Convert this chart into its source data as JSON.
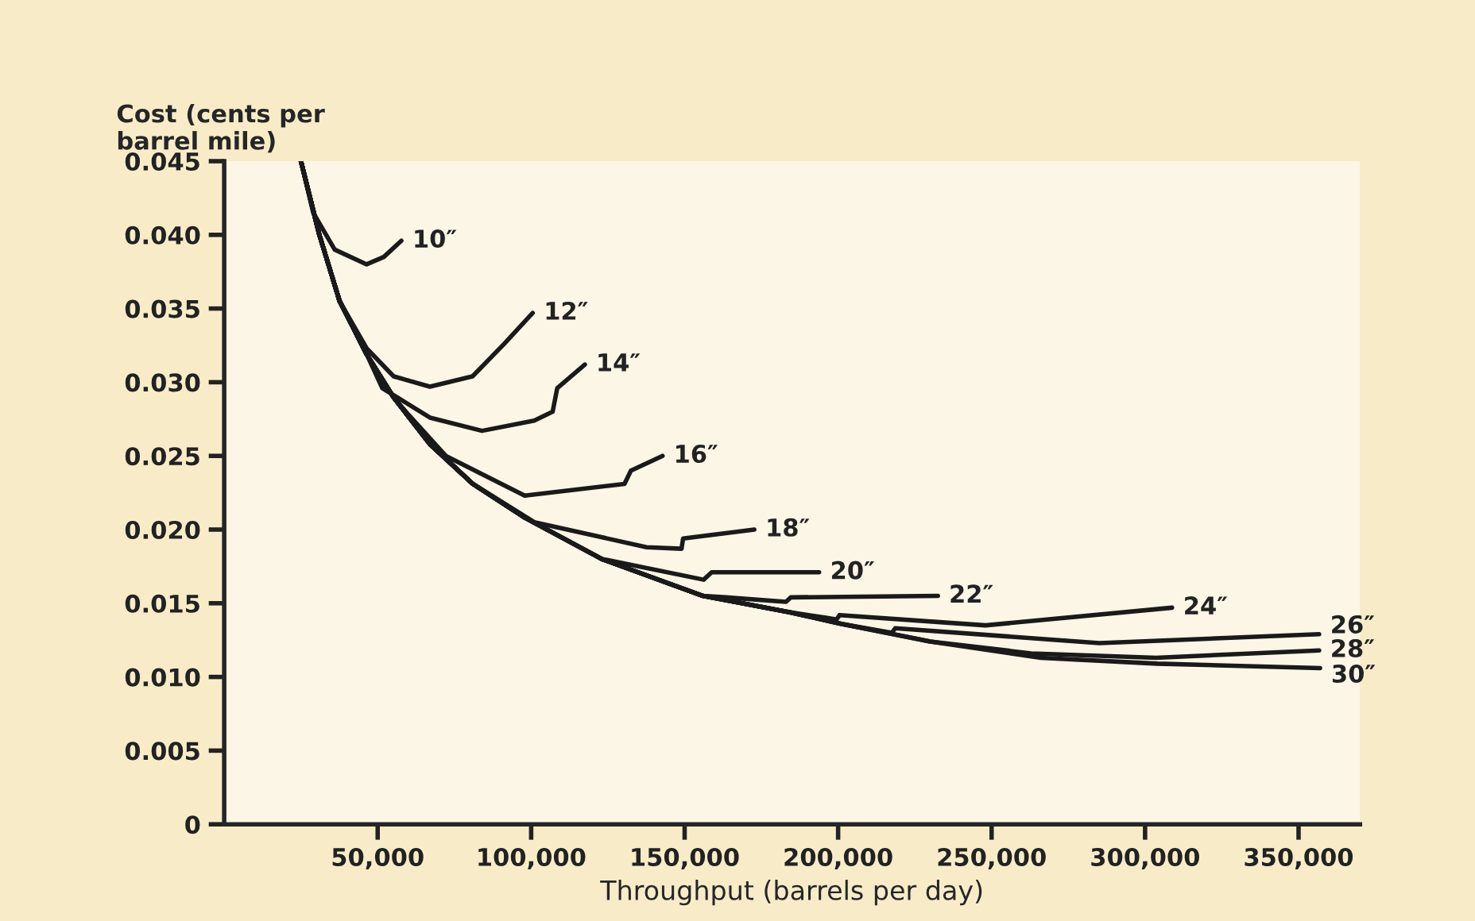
{
  "chart_data": {
    "type": "line",
    "xlabel": "Throughput (barrels per day)",
    "ylabel": "Cost (cents per\nbarrel mile)",
    "xlim": [
      0,
      370000
    ],
    "ylim": [
      0,
      0.045
    ],
    "xticks": [
      {
        "value": 50000,
        "label": "50,000"
      },
      {
        "value": 100000,
        "label": "100,000"
      },
      {
        "value": 150000,
        "label": "150,000"
      },
      {
        "value": 200000,
        "label": "200,000"
      },
      {
        "value": 250000,
        "label": "250,000"
      },
      {
        "value": 300000,
        "label": "300,000"
      },
      {
        "value": 350000,
        "label": "350,000"
      }
    ],
    "yticks": [
      0,
      0.005,
      {
        "value": 0.01,
        "label": "0.010"
      },
      0.015,
      {
        "value": 0.02,
        "label": "0.020"
      },
      0.025,
      {
        "value": 0.03,
        "label": "0.030"
      },
      0.035,
      {
        "value": 0.04,
        "label": "0.040"
      },
      0.045
    ],
    "grid": false,
    "legend": false,
    "marker": "none",
    "line_style": "solid",
    "series": [
      {
        "name": "10″",
        "color": "#1a1a1a",
        "x": [
          25000,
          29000,
          36000,
          46400,
          52000,
          57700
        ],
        "values": [
          0.045,
          0.0415,
          0.039,
          0.038,
          0.0385,
          0.0396
        ]
      },
      {
        "name": "12″",
        "color": "#1a1a1a",
        "x": [
          25000,
          31000,
          37600,
          46400,
          55200,
          67000,
          80900,
          91200,
          100500
        ],
        "values": [
          0.045,
          0.04,
          0.0355,
          0.0323,
          0.0304,
          0.0297,
          0.0304,
          0.0326,
          0.0347
        ]
      },
      {
        "name": "14″",
        "color": "#1a1a1a",
        "x": [
          25000,
          31000,
          37600,
          46400,
          51500,
          67000,
          84000,
          101000,
          107000,
          108500,
          117500
        ],
        "values": [
          0.045,
          0.04,
          0.0355,
          0.0319,
          0.0296,
          0.0276,
          0.0267,
          0.0274,
          0.028,
          0.0296,
          0.0312
        ]
      },
      {
        "name": "16″",
        "color": "#1a1a1a",
        "x": [
          25000,
          31000,
          37600,
          46400,
          55100,
          60000,
          72200,
          97900,
          130400,
          132500,
          142800
        ],
        "values": [
          0.045,
          0.04,
          0.0355,
          0.0319,
          0.029,
          0.0278,
          0.025,
          0.0223,
          0.0231,
          0.024,
          0.025
        ]
      },
      {
        "name": "18″",
        "color": "#1a1a1a",
        "x": [
          25000,
          31000,
          37600,
          46400,
          55100,
          67000,
          81000,
          101000,
          137600,
          149000,
          149500,
          172700
        ],
        "values": [
          0.045,
          0.04,
          0.0355,
          0.0319,
          0.029,
          0.0258,
          0.0231,
          0.0205,
          0.0188,
          0.0187,
          0.0194,
          0.02
        ]
      },
      {
        "name": "20″",
        "color": "#1a1a1a",
        "x": [
          25000,
          31000,
          37600,
          46400,
          55100,
          67000,
          81000,
          98000,
          123200,
          156200,
          158800,
          193800
        ],
        "values": [
          0.045,
          0.04,
          0.0355,
          0.0319,
          0.029,
          0.0258,
          0.0231,
          0.0208,
          0.018,
          0.0166,
          0.0171,
          0.0171
        ]
      },
      {
        "name": "22″",
        "color": "#1a1a1a",
        "x": [
          25000,
          31000,
          37600,
          46400,
          55100,
          67000,
          81000,
          98000,
          123000,
          156000,
          163400,
          183000,
          184600,
          232500
        ],
        "values": [
          0.045,
          0.04,
          0.0355,
          0.0319,
          0.029,
          0.0258,
          0.0231,
          0.0208,
          0.018,
          0.0155,
          0.0154,
          0.0151,
          0.0154,
          0.0155
        ]
      },
      {
        "name": "24″",
        "color": "#1a1a1a",
        "x": [
          25000,
          31000,
          37600,
          46400,
          55100,
          67000,
          81000,
          98000,
          123000,
          156000,
          184000,
          196400,
          199500,
          200500,
          248000,
          308800
        ],
        "values": [
          0.045,
          0.04,
          0.0355,
          0.0319,
          0.029,
          0.0258,
          0.0231,
          0.0208,
          0.018,
          0.0155,
          0.0144,
          0.014,
          0.0139,
          0.0142,
          0.0135,
          0.0147
        ]
      },
      {
        "name": "26″",
        "color": "#1a1a1a",
        "x": [
          25000,
          31000,
          37600,
          46400,
          55100,
          67000,
          81000,
          98000,
          123000,
          156000,
          184000,
          201000,
          217500,
          218600,
          285100,
          356700
        ],
        "values": [
          0.045,
          0.04,
          0.0355,
          0.0319,
          0.029,
          0.0258,
          0.0231,
          0.0208,
          0.018,
          0.0155,
          0.0144,
          0.0136,
          0.013,
          0.0133,
          0.0123,
          0.0129
        ]
      },
      {
        "name": "28″",
        "color": "#1a1a1a",
        "x": [
          25000,
          31000,
          37600,
          46400,
          55100,
          67000,
          81000,
          98000,
          123000,
          156000,
          184000,
          201000,
          230000,
          262900,
          303600,
          356700
        ],
        "values": [
          0.045,
          0.04,
          0.0355,
          0.0319,
          0.029,
          0.0258,
          0.0231,
          0.0208,
          0.018,
          0.0155,
          0.0144,
          0.0136,
          0.0124,
          0.0116,
          0.0113,
          0.0118
        ]
      },
      {
        "name": "30″",
        "color": "#1a1a1a",
        "x": [
          25000,
          31000,
          37600,
          46400,
          55100,
          67000,
          81000,
          98000,
          123000,
          156000,
          184000,
          201000,
          230000,
          266000,
          304000,
          357000
        ],
        "values": [
          0.045,
          0.04,
          0.0355,
          0.0319,
          0.029,
          0.0258,
          0.0231,
          0.0208,
          0.018,
          0.0155,
          0.0144,
          0.0136,
          0.0124,
          0.0113,
          0.0109,
          0.0106
        ]
      }
    ]
  }
}
